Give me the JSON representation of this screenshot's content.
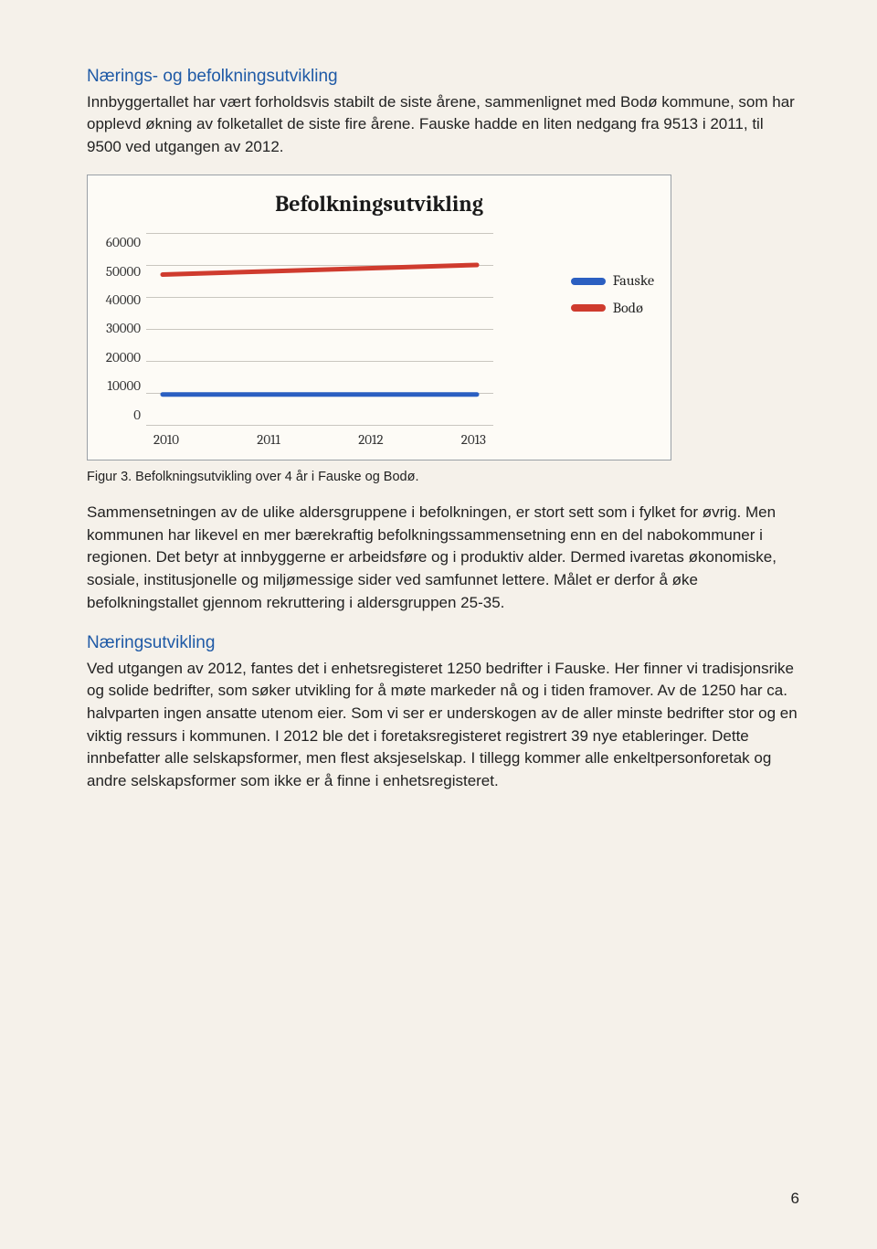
{
  "section1": {
    "heading": "Nærings- og befolkningsutvikling",
    "para": "Innbyggertallet har vært forholdsvis stabilt de siste årene, sammenlignet med Bodø kommune, som har opplevd økning av folketallet de siste fire årene. Fauske hadde en liten nedgang fra 9513 i 2011, til 9500 ved utgangen av 2012."
  },
  "chart": {
    "type": "line",
    "title": "Befolkningsutvikling",
    "x_categories": [
      "2010",
      "2011",
      "2012",
      "2013"
    ],
    "y_ticks": [
      "60000",
      "50000",
      "40000",
      "30000",
      "20000",
      "10000",
      "0"
    ],
    "ylim": [
      0,
      60000
    ],
    "series": {
      "bodo": {
        "label": "Bodø",
        "color": "#cf3b2e",
        "values": [
          47000,
          48000,
          49000,
          50000
        ]
      },
      "fauske": {
        "label": "Fauske",
        "color": "#2b5fc1",
        "values": [
          9513,
          9513,
          9500,
          9500
        ]
      }
    },
    "grid_color": "#c9c6bf",
    "background_color": "#fdfbf6",
    "border_color": "#9aa0a6",
    "line_width": 5,
    "title_fontsize": 24,
    "tick_fontsize": 15,
    "legend_fontsize": 16
  },
  "caption": "Figur 3. Befolkningsutvikling over 4 år i Fauske og Bodø.",
  "para2": "Sammensetningen av de ulike aldersgruppene i befolkningen, er stort sett som i fylket for øvrig. Men kommunen har likevel en mer bærekraftig befolkningssammensetning enn en del nabokommuner i regionen. Det betyr at innbyggerne er arbeidsføre og i produktiv alder. Dermed ivaretas økonomiske, sosiale, institusjonelle og miljømessige sider ved samfunnet lettere. Målet er derfor å øke befolkningstallet gjennom rekruttering i aldersgruppen 25-35.",
  "section2": {
    "heading": "Næringsutvikling",
    "para": "Ved utgangen av 2012, fantes det i enhetsregisteret 1250 bedrifter i Fauske. Her finner vi tradisjonsrike og solide bedrifter, som søker utvikling for å møte markeder nå og i tiden framover. Av de 1250 har ca. halvparten ingen ansatte utenom eier. Som vi ser er underskogen av de aller minste bedrifter stor og en viktig ressurs i kommunen. I 2012 ble det i foretaksregisteret registrert 39 nye etableringer. Dette innbefatter alle selskapsformer, men flest aksjeselskap. I tillegg kommer alle enkeltpersonforetak og andre selskapsformer som ikke er å finne i enhetsregisteret."
  },
  "page_number": "6"
}
